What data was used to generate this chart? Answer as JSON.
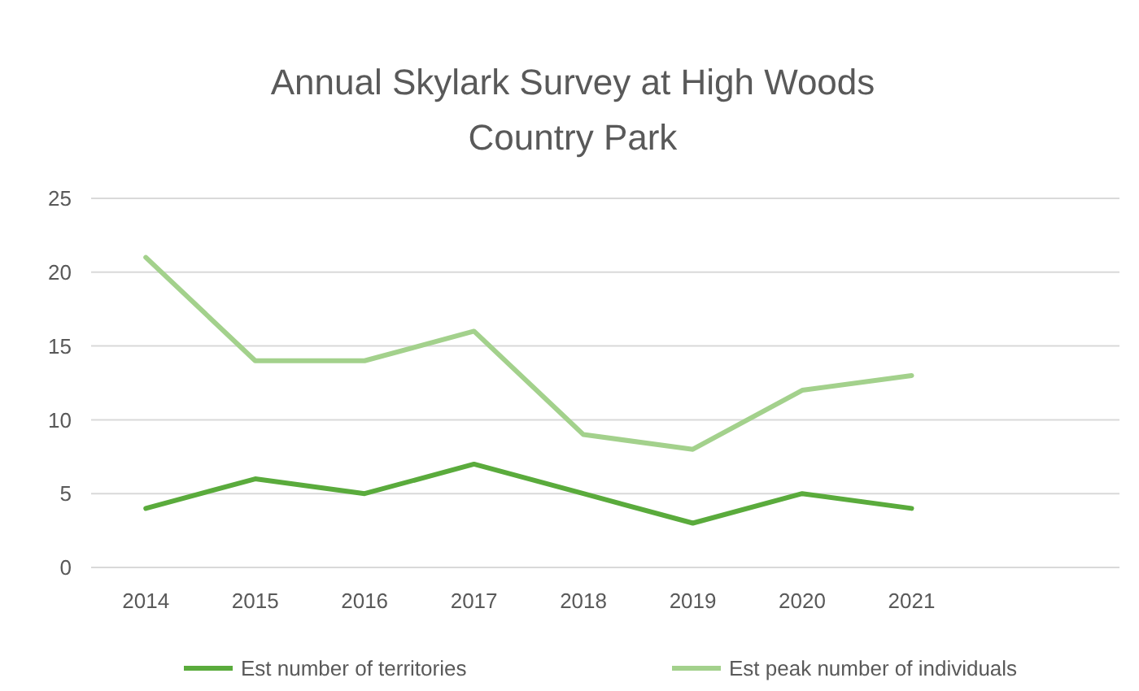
{
  "chart_data": {
    "type": "line",
    "title": "Annual Skylark Survey at High Woods Country Park",
    "categories": [
      "2014",
      "2015",
      "2016",
      "2017",
      "2018",
      "2019",
      "2020",
      "2021"
    ],
    "series": [
      {
        "name": "Est number of territories",
        "color": "#5aab3c",
        "values": [
          4,
          6,
          5,
          7,
          5,
          3,
          5,
          4
        ]
      },
      {
        "name": "Est peak number of individuals",
        "color": "#a3d18c",
        "values": [
          21,
          14,
          14,
          16,
          9,
          8,
          12,
          13
        ]
      }
    ],
    "ylim": [
      0,
      25
    ],
    "yticks": [
      0,
      5,
      10,
      15,
      20,
      25
    ],
    "grid": "y",
    "legend": "bottom",
    "marker": "none",
    "line_style": "solid"
  }
}
